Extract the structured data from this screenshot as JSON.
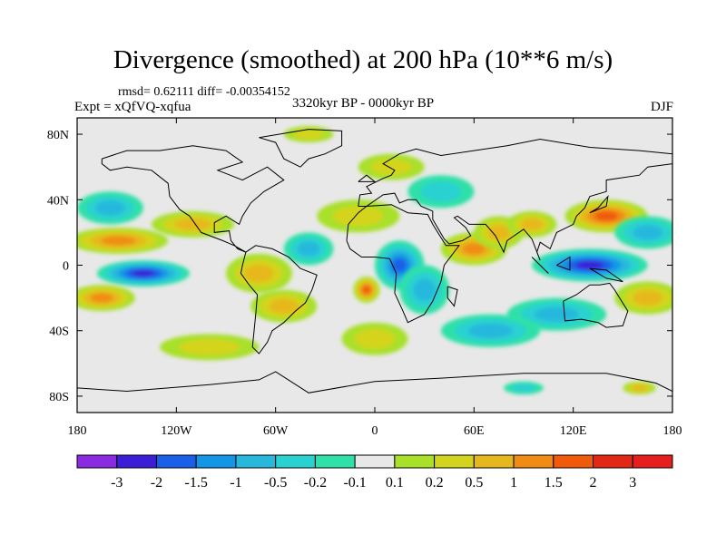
{
  "header": {
    "title": "Divergence (smoothed) at 200 hPa (10**6 m/s)",
    "stats": "rmsd= 0.62111 diff= -0.00354152",
    "experiment": "Expt = xQfVQ-xqfua",
    "period": "3320kyr BP - 0000kyr BP",
    "season": "DJF"
  },
  "chart_data": {
    "type": "heatmap",
    "title": "Divergence (smoothed) at 200 hPa (10**6 m/s)",
    "variable": "Divergence difference (smoothed), 200 hPa",
    "units": "10**6 m/s",
    "x_axis": {
      "range": [
        -180,
        180
      ],
      "ticks": [
        -180,
        -120,
        -60,
        0,
        60,
        120,
        180
      ],
      "tick_labels": [
        "180",
        "120W",
        "60W",
        "0",
        "60E",
        "120E",
        "180"
      ]
    },
    "y_axis": {
      "range": [
        -90,
        90
      ],
      "ticks": [
        80,
        40,
        0,
        -40,
        -80
      ],
      "tick_labels": [
        "80N",
        "40N",
        "0",
        "40S",
        "80S"
      ]
    },
    "colorbar": {
      "labels": [
        "-3",
        "-2",
        "-1.5",
        "-1",
        "-0.5",
        "-0.2",
        "-0.1",
        "0.1",
        "0.2",
        "0.5",
        "1",
        "1.5",
        "2",
        "3"
      ],
      "colors": [
        "#8a2be2",
        "#3b1fd6",
        "#1a5fe8",
        "#1496e6",
        "#27b8dc",
        "#2ad1d1",
        "#2fe0a8",
        "#e8e8e8",
        "#a8e02a",
        "#d4d41e",
        "#e6b81e",
        "#f08c14",
        "#f05a0a",
        "#e02814",
        "#e61e1e"
      ]
    },
    "features": [
      {
        "lon": -140,
        "lat": -5,
        "value": -2.0,
        "rx": 28,
        "ry": 8
      },
      {
        "lon": -155,
        "lat": 15,
        "value": 1.2,
        "rx": 30,
        "ry": 8
      },
      {
        "lon": -165,
        "lat": -20,
        "value": 1.0,
        "rx": 20,
        "ry": 8
      },
      {
        "lon": -110,
        "lat": 25,
        "value": 0.8,
        "rx": 25,
        "ry": 8
      },
      {
        "lon": -160,
        "lat": 35,
        "value": -0.5,
        "rx": 20,
        "ry": 10
      },
      {
        "lon": -70,
        "lat": -5,
        "value": 0.7,
        "rx": 20,
        "ry": 12
      },
      {
        "lon": -55,
        "lat": -25,
        "value": 0.6,
        "rx": 20,
        "ry": 10
      },
      {
        "lon": -40,
        "lat": 10,
        "value": -0.6,
        "rx": 15,
        "ry": 10
      },
      {
        "lon": -10,
        "lat": 30,
        "value": 0.3,
        "rx": 25,
        "ry": 10
      },
      {
        "lon": -5,
        "lat": -15,
        "value": 1.6,
        "rx": 8,
        "ry": 8
      },
      {
        "lon": 15,
        "lat": 0,
        "value": -1.5,
        "rx": 15,
        "ry": 15
      },
      {
        "lon": 30,
        "lat": -15,
        "value": -0.5,
        "rx": 15,
        "ry": 15
      },
      {
        "lon": 60,
        "lat": 10,
        "value": 1.0,
        "rx": 20,
        "ry": 10
      },
      {
        "lon": 75,
        "lat": 20,
        "value": 0.6,
        "rx": 15,
        "ry": 10
      },
      {
        "lon": 95,
        "lat": 25,
        "value": 0.8,
        "rx": 15,
        "ry": 8
      },
      {
        "lon": 140,
        "lat": 30,
        "value": 1.8,
        "rx": 25,
        "ry": 10
      },
      {
        "lon": 130,
        "lat": 0,
        "value": -2.3,
        "rx": 35,
        "ry": 10
      },
      {
        "lon": 110,
        "lat": -30,
        "value": -0.6,
        "rx": 30,
        "ry": 10
      },
      {
        "lon": 165,
        "lat": -20,
        "value": 0.8,
        "rx": 20,
        "ry": 10
      },
      {
        "lon": 165,
        "lat": 20,
        "value": -0.5,
        "rx": 20,
        "ry": 10
      },
      {
        "lon": 10,
        "lat": 60,
        "value": 0.2,
        "rx": 20,
        "ry": 8
      },
      {
        "lon": 40,
        "lat": 45,
        "value": -0.3,
        "rx": 20,
        "ry": 10
      },
      {
        "lon": 70,
        "lat": -40,
        "value": -0.5,
        "rx": 30,
        "ry": 10
      },
      {
        "lon": 0,
        "lat": -45,
        "value": 0.3,
        "rx": 20,
        "ry": 10
      },
      {
        "lon": -100,
        "lat": -50,
        "value": 0.4,
        "rx": 30,
        "ry": 8
      },
      {
        "lon": -40,
        "lat": 80,
        "value": 0.2,
        "rx": 15,
        "ry": 5
      },
      {
        "lon": 160,
        "lat": -75,
        "value": 0.5,
        "rx": 10,
        "ry": 4
      },
      {
        "lon": 90,
        "lat": -75,
        "value": -0.4,
        "rx": 12,
        "ry": 4
      }
    ]
  }
}
